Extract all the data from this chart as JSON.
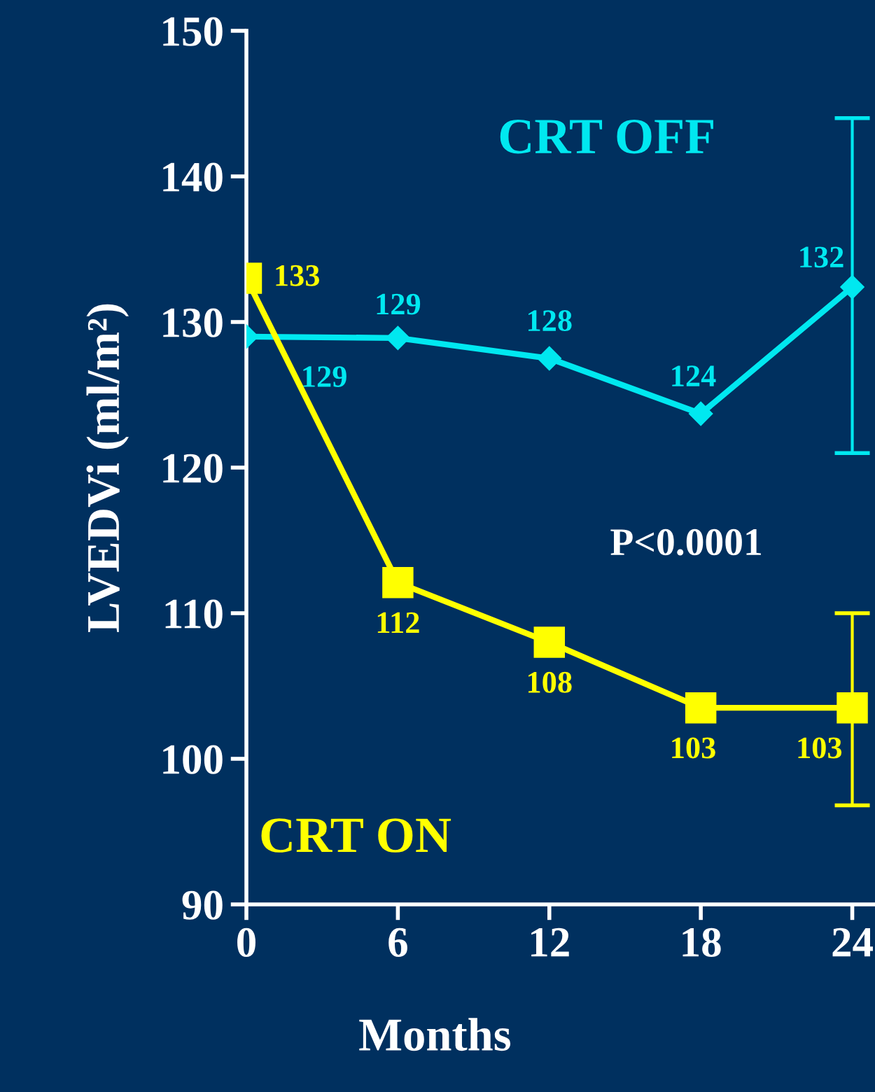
{
  "chart_data": {
    "type": "line",
    "xlabel": "Months",
    "ylabel": "LVEDVi (ml/m²)",
    "x": [
      0,
      6,
      12,
      18,
      24
    ],
    "xlim": [
      0,
      24.9
    ],
    "xticks": [
      0,
      6,
      12,
      18,
      24
    ],
    "ylim": [
      90,
      150
    ],
    "yticks": [
      90,
      100,
      110,
      120,
      130,
      140,
      150
    ],
    "grid": false,
    "legend": false,
    "line_style": "solid",
    "series": [
      {
        "name": "CRT OFF",
        "color": "#00e8f0",
        "marker": "diamond",
        "values": [
          129,
          128.9,
          127.5,
          123.7,
          132.4
        ],
        "value_labels": [
          "129",
          "129",
          "128",
          "124",
          "132"
        ],
        "errors": [
          null,
          null,
          null,
          null,
          [
            121,
            144
          ]
        ]
      },
      {
        "name": "CRT ON",
        "color": "#ffff00",
        "marker": "square",
        "values": [
          133,
          112.1,
          108,
          103.5,
          103.5
        ],
        "value_labels": [
          "133",
          "112",
          "108",
          "103",
          "103"
        ],
        "errors": [
          null,
          null,
          null,
          null,
          [
            96.8,
            110
          ]
        ]
      }
    ],
    "annotations": [
      "P<0.0001"
    ]
  }
}
